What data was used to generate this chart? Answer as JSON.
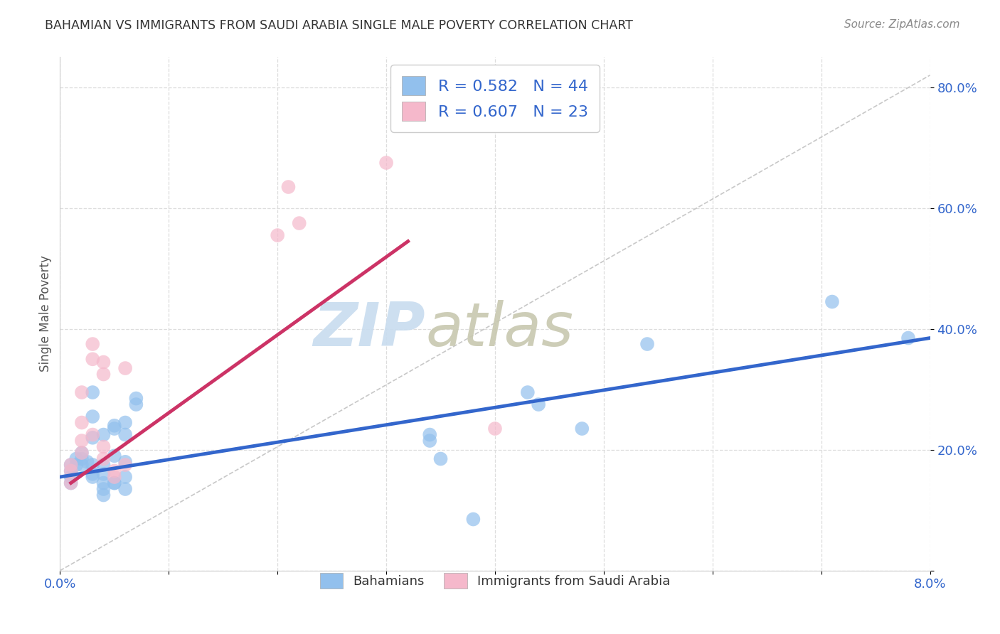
{
  "title": "BAHAMIAN VS IMMIGRANTS FROM SAUDI ARABIA SINGLE MALE POVERTY CORRELATION CHART",
  "source": "Source: ZipAtlas.com",
  "ylabel": "Single Male Poverty",
  "xlim": [
    0.0,
    0.08
  ],
  "ylim": [
    0.0,
    0.85
  ],
  "xticks": [
    0.0,
    0.01,
    0.02,
    0.03,
    0.04,
    0.05,
    0.06,
    0.07,
    0.08
  ],
  "xtick_labels": [
    "0.0%",
    "",
    "",
    "",
    "",
    "",
    "",
    "",
    "8.0%"
  ],
  "yticks": [
    0.0,
    0.2,
    0.4,
    0.6,
    0.8
  ],
  "ytick_labels": [
    "",
    "20.0%",
    "40.0%",
    "60.0%",
    "80.0%"
  ],
  "blue_color": "#92C0ED",
  "pink_color": "#F5B8CB",
  "blue_line_color": "#3366CC",
  "pink_line_color": "#CC3366",
  "diagonal_color": "#C8C8C8",
  "R_blue": 0.582,
  "N_blue": 44,
  "R_pink": 0.607,
  "N_pink": 23,
  "watermark_zip": "ZIP",
  "watermark_atlas": "atlas",
  "blue_scatter": [
    [
      0.001,
      0.175
    ],
    [
      0.001,
      0.155
    ],
    [
      0.001,
      0.165
    ],
    [
      0.001,
      0.145
    ],
    [
      0.0015,
      0.185
    ],
    [
      0.0015,
      0.175
    ],
    [
      0.002,
      0.195
    ],
    [
      0.002,
      0.175
    ],
    [
      0.002,
      0.185
    ],
    [
      0.0025,
      0.18
    ],
    [
      0.003,
      0.22
    ],
    [
      0.003,
      0.255
    ],
    [
      0.003,
      0.16
    ],
    [
      0.003,
      0.175
    ],
    [
      0.003,
      0.155
    ],
    [
      0.003,
      0.295
    ],
    [
      0.004,
      0.225
    ],
    [
      0.004,
      0.145
    ],
    [
      0.004,
      0.16
    ],
    [
      0.004,
      0.175
    ],
    [
      0.004,
      0.135
    ],
    [
      0.004,
      0.125
    ],
    [
      0.005,
      0.19
    ],
    [
      0.005,
      0.145
    ],
    [
      0.005,
      0.145
    ],
    [
      0.005,
      0.235
    ],
    [
      0.005,
      0.24
    ],
    [
      0.006,
      0.225
    ],
    [
      0.006,
      0.245
    ],
    [
      0.006,
      0.135
    ],
    [
      0.006,
      0.155
    ],
    [
      0.006,
      0.18
    ],
    [
      0.007,
      0.275
    ],
    [
      0.007,
      0.285
    ],
    [
      0.034,
      0.215
    ],
    [
      0.034,
      0.225
    ],
    [
      0.035,
      0.185
    ],
    [
      0.038,
      0.085
    ],
    [
      0.043,
      0.295
    ],
    [
      0.044,
      0.275
    ],
    [
      0.048,
      0.235
    ],
    [
      0.054,
      0.375
    ],
    [
      0.071,
      0.445
    ],
    [
      0.078,
      0.385
    ]
  ],
  "pink_scatter": [
    [
      0.001,
      0.165
    ],
    [
      0.001,
      0.175
    ],
    [
      0.001,
      0.145
    ],
    [
      0.002,
      0.195
    ],
    [
      0.002,
      0.215
    ],
    [
      0.002,
      0.245
    ],
    [
      0.002,
      0.295
    ],
    [
      0.003,
      0.35
    ],
    [
      0.003,
      0.225
    ],
    [
      0.003,
      0.375
    ],
    [
      0.004,
      0.345
    ],
    [
      0.004,
      0.325
    ],
    [
      0.004,
      0.205
    ],
    [
      0.004,
      0.185
    ],
    [
      0.005,
      0.155
    ],
    [
      0.005,
      0.165
    ],
    [
      0.006,
      0.335
    ],
    [
      0.006,
      0.175
    ],
    [
      0.02,
      0.555
    ],
    [
      0.021,
      0.635
    ],
    [
      0.022,
      0.575
    ],
    [
      0.03,
      0.675
    ],
    [
      0.04,
      0.235
    ]
  ],
  "blue_trend_x": [
    0.0,
    0.08
  ],
  "blue_trend_y": [
    0.155,
    0.385
  ],
  "pink_trend_x": [
    0.001,
    0.032
  ],
  "pink_trend_y": [
    0.145,
    0.545
  ]
}
